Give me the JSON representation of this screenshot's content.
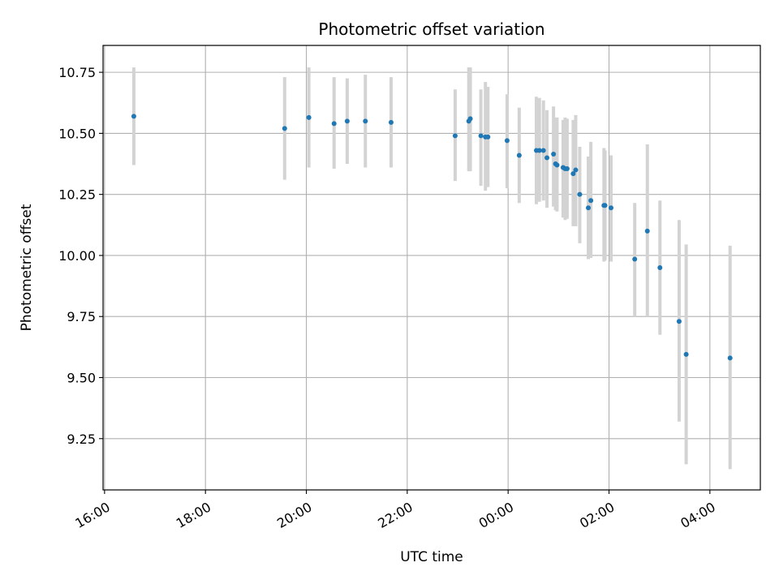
{
  "chart_data": {
    "type": "scatter",
    "title": "Photometric offset variation",
    "xlabel": "UTC time",
    "ylabel": "Photometric offset",
    "x_unit": "hours since 16:00 UTC",
    "xlim": [
      -0.03,
      13.0
    ],
    "ylim": [
      9.04,
      10.86
    ],
    "x_ticks": [
      {
        "hour": 0,
        "label": "16:00"
      },
      {
        "hour": 2,
        "label": "18:00"
      },
      {
        "hour": 4,
        "label": "20:00"
      },
      {
        "hour": 6,
        "label": "22:00"
      },
      {
        "hour": 8,
        "label": "00:00"
      },
      {
        "hour": 10,
        "label": "02:00"
      },
      {
        "hour": 12,
        "label": "04:00"
      }
    ],
    "y_ticks": [
      {
        "value": 9.25,
        "label": "9.25"
      },
      {
        "value": 9.5,
        "label": "9.50"
      },
      {
        "value": 9.75,
        "label": "9.75"
      },
      {
        "value": 10.0,
        "label": "10.00"
      },
      {
        "value": 10.25,
        "label": "10.25"
      },
      {
        "value": 10.5,
        "label": "10.50"
      },
      {
        "value": 10.75,
        "label": "10.75"
      }
    ],
    "grid": true,
    "colors": {
      "point": "#1f77b4",
      "errorbar": "#d3d3d3",
      "grid": "#b0b0b0"
    },
    "points": [
      {
        "x": 0.58,
        "y": 10.57,
        "low": 10.37,
        "high": 10.77
      },
      {
        "x": 3.57,
        "y": 10.52,
        "low": 10.31,
        "high": 10.73
      },
      {
        "x": 4.05,
        "y": 10.565,
        "low": 10.36,
        "high": 10.77
      },
      {
        "x": 4.55,
        "y": 10.54,
        "low": 10.355,
        "high": 10.73
      },
      {
        "x": 4.81,
        "y": 10.55,
        "low": 10.375,
        "high": 10.725
      },
      {
        "x": 5.17,
        "y": 10.55,
        "low": 10.36,
        "high": 10.74
      },
      {
        "x": 5.68,
        "y": 10.545,
        "low": 10.36,
        "high": 10.73
      },
      {
        "x": 6.95,
        "y": 10.49,
        "low": 10.305,
        "high": 10.68
      },
      {
        "x": 7.22,
        "y": 10.55,
        "low": 10.345,
        "high": 10.77
      },
      {
        "x": 7.25,
        "y": 10.56,
        "low": 10.345,
        "high": 10.77
      },
      {
        "x": 7.46,
        "y": 10.49,
        "low": 10.285,
        "high": 10.68
      },
      {
        "x": 7.55,
        "y": 10.485,
        "low": 10.265,
        "high": 10.71
      },
      {
        "x": 7.6,
        "y": 10.485,
        "low": 10.28,
        "high": 10.69
      },
      {
        "x": 7.98,
        "y": 10.47,
        "low": 10.275,
        "high": 10.66
      },
      {
        "x": 8.22,
        "y": 10.41,
        "low": 10.215,
        "high": 10.605
      },
      {
        "x": 8.56,
        "y": 10.43,
        "low": 10.21,
        "high": 10.65
      },
      {
        "x": 8.62,
        "y": 10.43,
        "low": 10.22,
        "high": 10.645
      },
      {
        "x": 8.7,
        "y": 10.43,
        "low": 10.225,
        "high": 10.635
      },
      {
        "x": 8.77,
        "y": 10.4,
        "low": 10.195,
        "high": 10.595
      },
      {
        "x": 8.9,
        "y": 10.415,
        "low": 10.2,
        "high": 10.61
      },
      {
        "x": 8.94,
        "y": 10.375,
        "low": 10.185,
        "high": 10.565
      },
      {
        "x": 8.97,
        "y": 10.37,
        "low": 10.18,
        "high": 10.565
      },
      {
        "x": 9.09,
        "y": 10.36,
        "low": 10.155,
        "high": 10.555
      },
      {
        "x": 9.13,
        "y": 10.355,
        "low": 10.145,
        "high": 10.565
      },
      {
        "x": 9.17,
        "y": 10.355,
        "low": 10.15,
        "high": 10.56
      },
      {
        "x": 9.29,
        "y": 10.335,
        "low": 10.12,
        "high": 10.555
      },
      {
        "x": 9.34,
        "y": 10.35,
        "low": 10.12,
        "high": 10.575
      },
      {
        "x": 9.42,
        "y": 10.25,
        "low": 10.05,
        "high": 10.445
      },
      {
        "x": 9.59,
        "y": 10.195,
        "low": 9.985,
        "high": 10.405
      },
      {
        "x": 9.64,
        "y": 10.225,
        "low": 9.99,
        "high": 10.465
      },
      {
        "x": 9.9,
        "y": 10.205,
        "low": 9.975,
        "high": 10.44
      },
      {
        "x": 9.92,
        "y": 10.205,
        "low": 9.98,
        "high": 10.43
      },
      {
        "x": 10.04,
        "y": 10.195,
        "low": 9.975,
        "high": 10.41
      },
      {
        "x": 10.51,
        "y": 9.985,
        "low": 9.75,
        "high": 10.215
      },
      {
        "x": 10.76,
        "y": 10.1,
        "low": 9.75,
        "high": 10.455
      },
      {
        "x": 11.01,
        "y": 9.95,
        "low": 9.675,
        "high": 10.225
      },
      {
        "x": 11.39,
        "y": 9.73,
        "low": 9.32,
        "high": 10.145
      },
      {
        "x": 11.53,
        "y": 9.595,
        "low": 9.145,
        "high": 10.045
      },
      {
        "x": 12.4,
        "y": 9.58,
        "low": 9.125,
        "high": 10.04
      }
    ]
  }
}
